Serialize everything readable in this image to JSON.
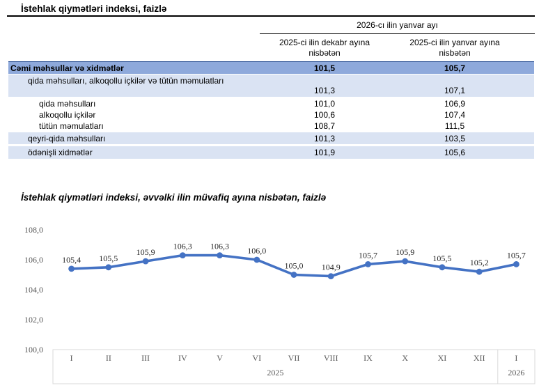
{
  "page": {
    "title": "İstehlak qiymətləri indeksi, faizlə"
  },
  "table": {
    "span_header": "2026-cı ilin yanvar ayı",
    "col1_header": "2025-ci ilin dekabr ayına nisbətən",
    "col2_header": "2025-ci ilin yanvar ayına nisbətən",
    "rows": [
      {
        "label": "Cəmi məhsullar və xidmətlər",
        "v1": "101,5",
        "v2": "105,7",
        "style": "total",
        "level": 0
      },
      {
        "label": "qida məhsulları, alkoqollu içkilər və tütün məmulatları",
        "v1": "101,3",
        "v2": "107,1",
        "style": "alt",
        "level": 1,
        "twoline": true
      },
      {
        "label": "qida məhsulları",
        "v1": "101,0",
        "v2": "106,9",
        "style": "plain",
        "level": 2
      },
      {
        "label": "alkoqollu içkilər",
        "v1": "100,6",
        "v2": "107,4",
        "style": "plain",
        "level": 2
      },
      {
        "label": "tütün məmulatları",
        "v1": "108,7",
        "v2": "111,5",
        "style": "plain",
        "level": 2
      },
      {
        "label": "qeyri-qida məhsulları",
        "v1": "101,3",
        "v2": "103,5",
        "style": "alt",
        "level": 1
      },
      {
        "label": "ödənişli xidmətlər",
        "v1": "101,9",
        "v2": "105,6",
        "style": "alt",
        "level": 1
      }
    ]
  },
  "chart_data": {
    "type": "line",
    "title": "İstehlak qiymətləri indeksi, əvvəlki ilin müvafiq ayına nisbətən, faizlə",
    "x": [
      "I",
      "II",
      "III",
      "IV",
      "V",
      "VI",
      "VII",
      "VIII",
      "IX",
      "X",
      "XI",
      "XII",
      "I"
    ],
    "x_groups": [
      {
        "label": "2025",
        "span": 12
      },
      {
        "label": "2026",
        "span": 1
      }
    ],
    "values": [
      105.4,
      105.5,
      105.9,
      106.3,
      106.3,
      106.0,
      105.0,
      104.9,
      105.7,
      105.9,
      105.5,
      105.2,
      105.7
    ],
    "point_labels": [
      "105,4",
      "105,5",
      "105,9",
      "106,3",
      "106,3",
      "106,0",
      "105,0",
      "104,9",
      "105,7",
      "105,9",
      "105,5",
      "105,2",
      "105,7"
    ],
    "ylim": [
      100.0,
      108.0
    ],
    "ytick_values": [
      108,
      106,
      104,
      102,
      100
    ],
    "ytick_labels": [
      "108,0",
      "106,0",
      "104,0",
      "102,0",
      "100,0"
    ],
    "grid": false,
    "legend": "none",
    "line_color": "#4472C4"
  },
  "colors": {
    "row_total_bg": "#8EA9DB",
    "row_alt_bg": "#DAE3F3",
    "row_total_border": "#2F5496",
    "axis_box_border": "#D9D9D9",
    "tick_text": "#595959",
    "label_text": "#262626"
  }
}
